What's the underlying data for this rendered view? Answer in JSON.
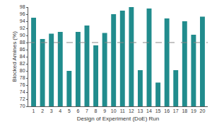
{
  "chart_data": {
    "type": "bar",
    "x_label": "Design of Experiment (DoE) Run",
    "y_label": "Blocked Amines (%)",
    "categories": [
      "1",
      "2",
      "3",
      "4",
      "5",
      "6",
      "7",
      "8",
      "9",
      "10",
      "11",
      "12",
      "13",
      "14",
      "15",
      "16",
      "17",
      "18",
      "19",
      "20"
    ],
    "values": [
      95,
      89,
      90.5,
      91,
      80,
      91,
      92.8,
      87.2,
      90.7,
      96,
      97,
      98,
      80.2,
      97.6,
      76.7,
      94.8,
      80.2,
      94,
      90.2,
      95.3
    ],
    "color": "#218c8d",
    "ylim": [
      70,
      98
    ],
    "yticks": [
      70,
      72,
      74,
      76,
      78,
      80,
      82,
      84,
      86,
      88,
      90,
      92,
      94,
      96,
      98
    ],
    "reference_line": 88,
    "grid": false
  }
}
